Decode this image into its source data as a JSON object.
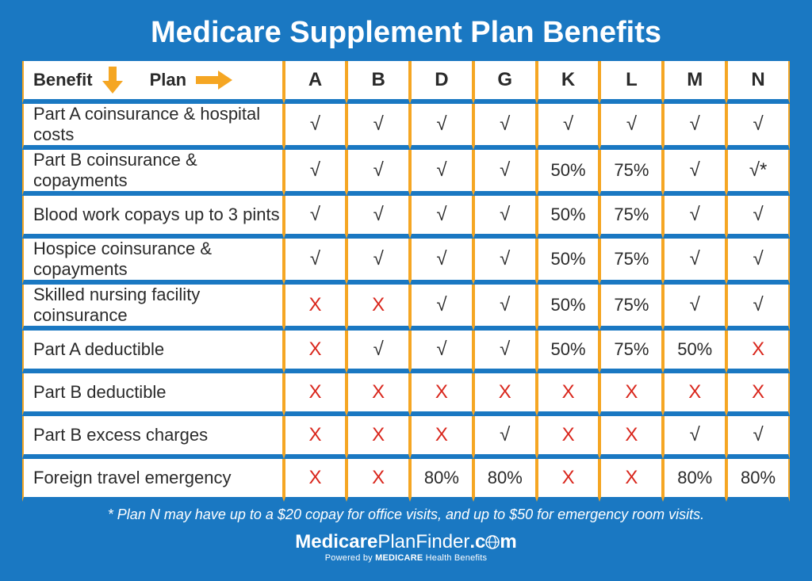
{
  "title": "Medicare Supplement Plan Benefits",
  "header": {
    "benefit_label": "Benefit",
    "plan_label": "Plan",
    "plans": [
      "A",
      "B",
      "D",
      "G",
      "K",
      "L",
      "M",
      "N"
    ]
  },
  "colors": {
    "background": "#1a78c2",
    "cell_bg": "#ffffff",
    "cell_border": "#f5a623",
    "arrow": "#f5a623",
    "x_color": "#d9261c",
    "text": "#2a2a2a",
    "title_text": "#ffffff"
  },
  "symbols": {
    "check": "√",
    "x": "X",
    "check_star": "√*"
  },
  "rows": [
    {
      "label": "Part A coinsurance & hospital costs",
      "cells": [
        "check",
        "check",
        "check",
        "check",
        "check",
        "check",
        "check",
        "check"
      ]
    },
    {
      "label": "Part B coinsurance & copayments",
      "cells": [
        "check",
        "check",
        "check",
        "check",
        "50%",
        "75%",
        "check",
        "check_star"
      ]
    },
    {
      "label": "Blood work copays up to 3 pints",
      "cells": [
        "check",
        "check",
        "check",
        "check",
        "50%",
        "75%",
        "check",
        "check"
      ]
    },
    {
      "label": "Hospice coinsurance & copayments",
      "cells": [
        "check",
        "check",
        "check",
        "check",
        "50%",
        "75%",
        "check",
        "check"
      ]
    },
    {
      "label": "Skilled nursing facility coinsurance",
      "cells": [
        "x",
        "x",
        "check",
        "check",
        "50%",
        "75%",
        "check",
        "check"
      ]
    },
    {
      "label": "Part A deductible",
      "cells": [
        "x",
        "check",
        "check",
        "check",
        "50%",
        "75%",
        "50%",
        "x"
      ]
    },
    {
      "label": "Part B deductible",
      "cells": [
        "x",
        "x",
        "x",
        "x",
        "x",
        "x",
        "x",
        "x"
      ]
    },
    {
      "label": "Part B excess charges",
      "cells": [
        "x",
        "x",
        "x",
        "check",
        "x",
        "x",
        "check",
        "check"
      ]
    },
    {
      "label": "Foreign travel emergency",
      "cells": [
        "x",
        "x",
        "80%",
        "80%",
        "x",
        "x",
        "80%",
        "80%"
      ]
    }
  ],
  "footnote": "* Plan N may have up to a $20 copay for office visits, and up to $50 for emergency room visits.",
  "logo": {
    "part1": "Medicare",
    "part2": "PlanFinder",
    "part3": ".c",
    "part4": "m",
    "sub_prefix": "Powered by ",
    "sub_bold": "MEDICARE",
    "sub_suffix": " Health Benefits"
  }
}
